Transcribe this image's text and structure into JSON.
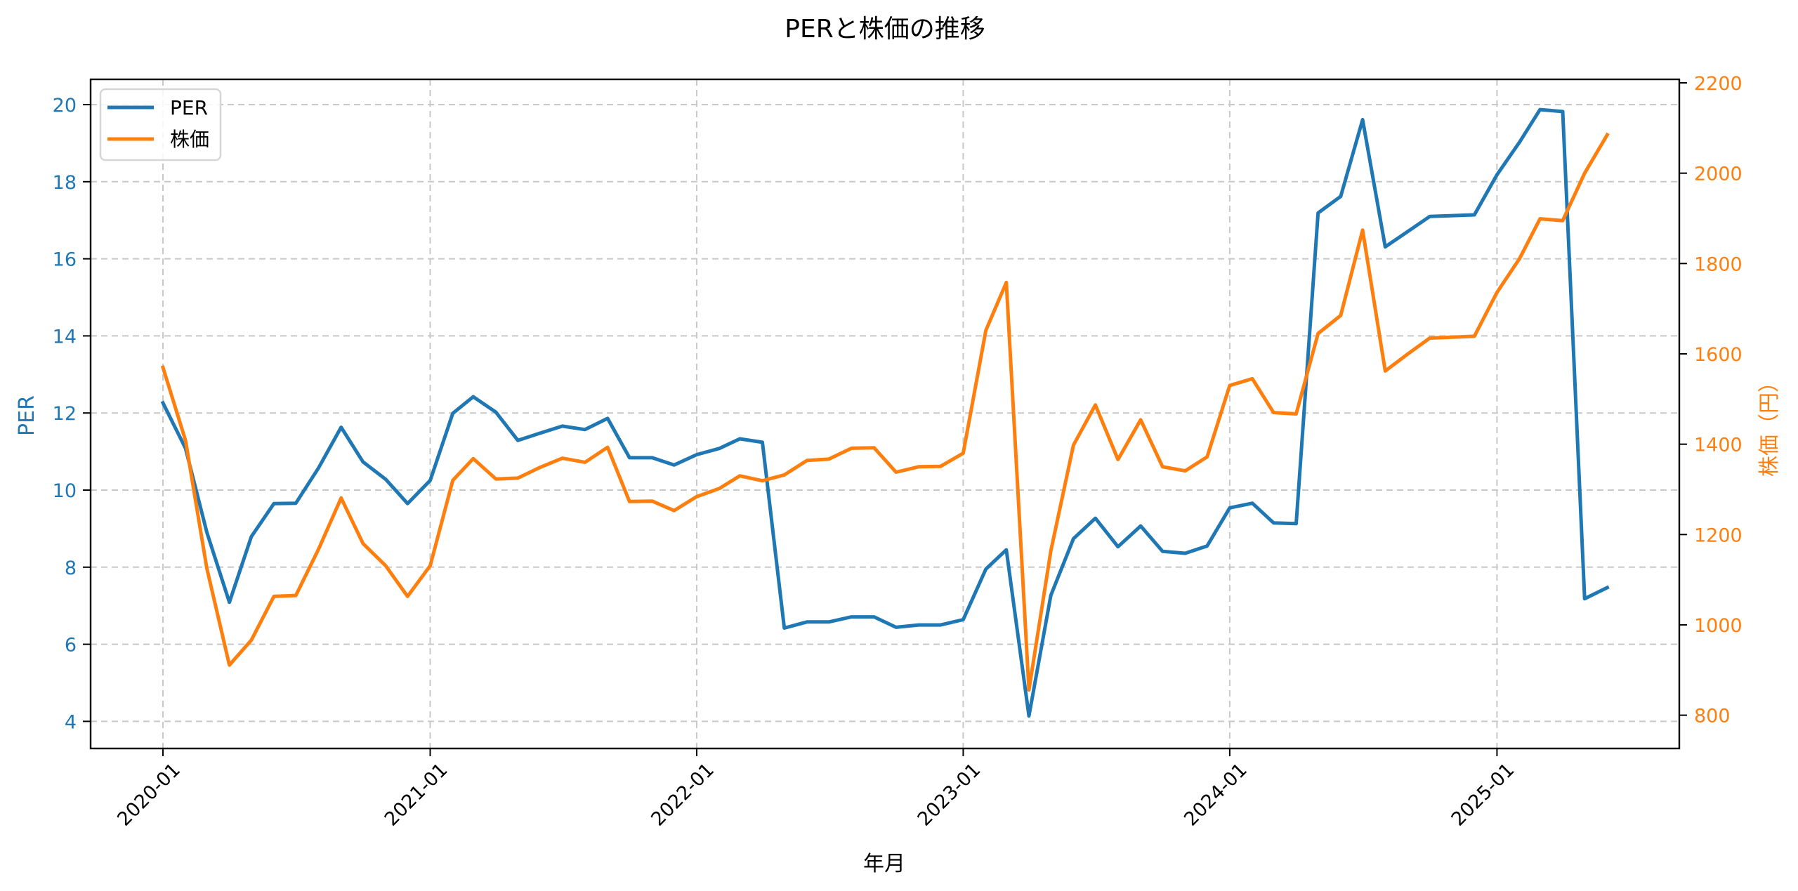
{
  "chart_data": {
    "type": "line",
    "title": "PERと株価の推移",
    "xlabel": "年月",
    "ylabel": "PER",
    "ylabel_right": "株価（円）",
    "x": [
      "2020-01",
      "2020-02",
      "2020-03",
      "2020-04",
      "2020-05",
      "2020-06",
      "2020-07",
      "2020-08",
      "2020-09",
      "2020-10",
      "2020-11",
      "2020-12",
      "2021-01",
      "2021-02",
      "2021-03",
      "2021-04",
      "2021-05",
      "2021-06",
      "2021-07",
      "2021-08",
      "2021-09",
      "2021-10",
      "2021-11",
      "2021-12",
      "2022-01",
      "2022-02",
      "2022-03",
      "2022-04",
      "2022-05",
      "2022-06",
      "2022-07",
      "2022-08",
      "2022-09",
      "2022-10",
      "2022-11",
      "2022-12",
      "2023-01",
      "2023-02",
      "2023-03",
      "2023-04",
      "2023-05",
      "2023-06",
      "2023-07",
      "2023-08",
      "2023-09",
      "2023-10",
      "2023-11",
      "2023-12",
      "2024-01",
      "2024-02",
      "2024-03",
      "2024-04",
      "2024-05",
      "2024-06",
      "2024-07",
      "2024-08",
      "2024-09",
      "2024-10",
      "2024-11",
      "2024-12",
      "2025-01",
      "2025-02",
      "2025-03",
      "2025-04",
      "2025-05",
      "2025-06"
    ],
    "series": [
      {
        "name": "PER",
        "axis": "left",
        "color": "#1f77b4",
        "values": [
          12.26,
          11.08,
          8.91,
          7.09,
          8.79,
          9.65,
          9.66,
          10.57,
          11.63,
          10.73,
          10.28,
          9.65,
          10.25,
          11.99,
          12.42,
          12.02,
          11.29,
          11.48,
          11.66,
          11.57,
          11.86,
          10.84,
          10.84,
          10.65,
          10.92,
          11.08,
          11.33,
          11.24,
          6.42,
          6.58,
          6.58,
          6.71,
          6.71,
          6.44,
          6.5,
          6.5,
          6.64,
          7.95,
          8.45,
          4.14,
          7.27,
          8.74,
          9.27,
          8.53,
          9.07,
          8.41,
          8.36,
          8.55,
          9.54,
          9.66,
          9.15,
          9.13,
          17.19,
          17.62,
          19.61,
          16.31,
          16.71,
          17.1,
          17.12,
          17.14,
          18.18,
          19.03,
          19.87,
          19.82,
          7.18,
          7.47
        ]
      },
      {
        "name": "株価",
        "axis": "right",
        "color": "#ff7f0e",
        "values": [
          1570,
          1408,
          1126,
          911,
          966,
          1063,
          1065,
          1167,
          1281,
          1180,
          1131,
          1063,
          1131,
          1320,
          1368,
          1323,
          1325,
          1349,
          1369,
          1360,
          1393,
          1273,
          1274,
          1253,
          1284,
          1302,
          1330,
          1319,
          1332,
          1364,
          1367,
          1391,
          1392,
          1338,
          1350,
          1351,
          1380,
          1652,
          1758,
          856,
          1164,
          1398,
          1487,
          1366,
          1454,
          1350,
          1341,
          1372,
          1530,
          1545,
          1470,
          1467,
          1645,
          1685,
          1874,
          1562,
          1600,
          1635,
          1637,
          1639,
          1736,
          1811,
          1899,
          1895,
          2000,
          2085
        ]
      }
    ],
    "x_ticks": [
      "2020-01",
      "2021-01",
      "2022-01",
      "2023-01",
      "2024-01",
      "2025-01"
    ],
    "y_ticks_left": [
      4,
      6,
      8,
      10,
      12,
      14,
      16,
      18,
      20
    ],
    "y_ticks_right": [
      800,
      1000,
      1200,
      1400,
      1600,
      1800,
      2000,
      2200
    ],
    "ylim_left": [
      3.3,
      20.65
    ],
    "ylim_right": [
      727,
      2200
    ],
    "left_axis_color": "#1f77b4",
    "right_axis_color": "#ff7f0e",
    "grid": true,
    "grid_style": "dashed",
    "legend_position": "upper left",
    "legend": [
      "PER",
      "株価"
    ],
    "x_tick_rotation": 45
  }
}
